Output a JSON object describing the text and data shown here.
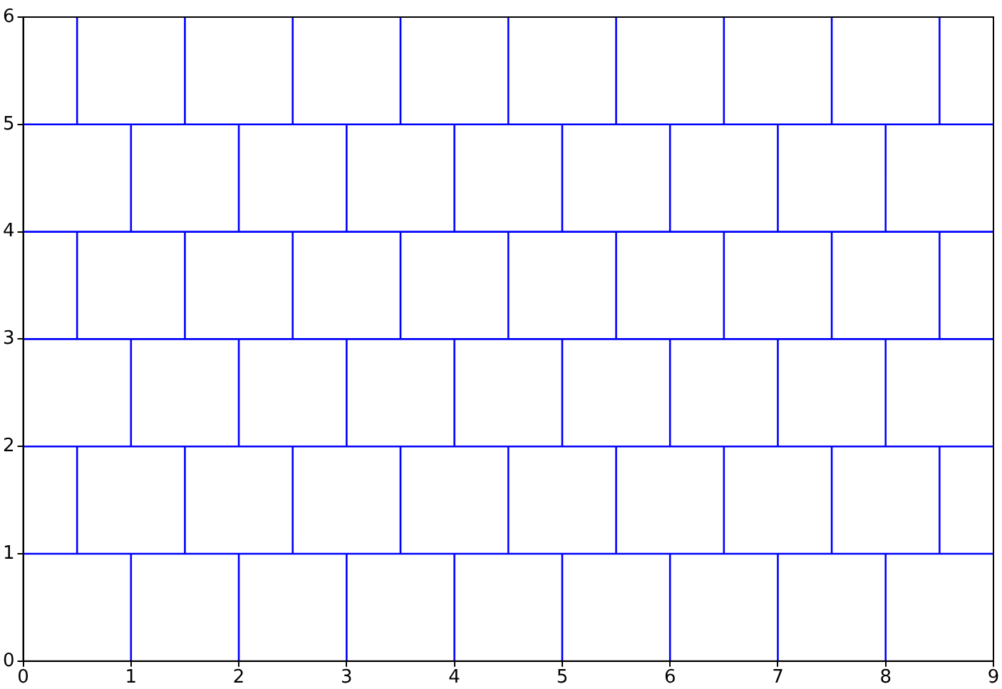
{
  "chart_data": {
    "type": "line",
    "xlim": [
      0,
      9
    ],
    "ylim": [
      0,
      6
    ],
    "xticks": [
      0,
      1,
      2,
      3,
      4,
      5,
      6,
      7,
      8,
      9
    ],
    "yticks": [
      0,
      1,
      2,
      3,
      4,
      5,
      6
    ],
    "legend": false,
    "marker": "none",
    "line_style": "solid",
    "ref_lines": [
      {
        "axis": "y",
        "value": 1,
        "color": "#0000ff"
      },
      {
        "axis": "y",
        "value": 2,
        "color": "#0000ff"
      },
      {
        "axis": "y",
        "value": 3,
        "color": "#0000ff"
      },
      {
        "axis": "y",
        "value": 4,
        "color": "#0000ff"
      },
      {
        "axis": "y",
        "value": 5,
        "color": "#0000ff"
      }
    ],
    "series": [
      {
        "color": "#0000ff",
        "x": [
          1,
          1
        ],
        "values": [
          0,
          1
        ]
      },
      {
        "color": "#0000ff",
        "x": [
          2,
          2
        ],
        "values": [
          0,
          1
        ]
      },
      {
        "color": "#0000ff",
        "x": [
          3,
          3
        ],
        "values": [
          0,
          1
        ]
      },
      {
        "color": "#0000ff",
        "x": [
          4,
          4
        ],
        "values": [
          0,
          1
        ]
      },
      {
        "color": "#0000ff",
        "x": [
          5,
          5
        ],
        "values": [
          0,
          1
        ]
      },
      {
        "color": "#0000ff",
        "x": [
          6,
          6
        ],
        "values": [
          0,
          1
        ]
      },
      {
        "color": "#0000ff",
        "x": [
          7,
          7
        ],
        "values": [
          0,
          1
        ]
      },
      {
        "color": "#0000ff",
        "x": [
          8,
          8
        ],
        "values": [
          0,
          1
        ]
      },
      {
        "color": "#0000ff",
        "x": [
          0.5,
          0.5
        ],
        "values": [
          1,
          2
        ]
      },
      {
        "color": "#0000ff",
        "x": [
          1.5,
          1.5
        ],
        "values": [
          1,
          2
        ]
      },
      {
        "color": "#0000ff",
        "x": [
          2.5,
          2.5
        ],
        "values": [
          1,
          2
        ]
      },
      {
        "color": "#0000ff",
        "x": [
          3.5,
          3.5
        ],
        "values": [
          1,
          2
        ]
      },
      {
        "color": "#0000ff",
        "x": [
          4.5,
          4.5
        ],
        "values": [
          1,
          2
        ]
      },
      {
        "color": "#0000ff",
        "x": [
          5.5,
          5.5
        ],
        "values": [
          1,
          2
        ]
      },
      {
        "color": "#0000ff",
        "x": [
          6.5,
          6.5
        ],
        "values": [
          1,
          2
        ]
      },
      {
        "color": "#0000ff",
        "x": [
          7.5,
          7.5
        ],
        "values": [
          1,
          2
        ]
      },
      {
        "color": "#0000ff",
        "x": [
          8.5,
          8.5
        ],
        "values": [
          1,
          2
        ]
      },
      {
        "color": "#0000ff",
        "x": [
          1,
          1
        ],
        "values": [
          2,
          3
        ]
      },
      {
        "color": "#0000ff",
        "x": [
          2,
          2
        ],
        "values": [
          2,
          3
        ]
      },
      {
        "color": "#0000ff",
        "x": [
          3,
          3
        ],
        "values": [
          2,
          3
        ]
      },
      {
        "color": "#0000ff",
        "x": [
          4,
          4
        ],
        "values": [
          2,
          3
        ]
      },
      {
        "color": "#0000ff",
        "x": [
          5,
          5
        ],
        "values": [
          2,
          3
        ]
      },
      {
        "color": "#0000ff",
        "x": [
          6,
          6
        ],
        "values": [
          2,
          3
        ]
      },
      {
        "color": "#0000ff",
        "x": [
          7,
          7
        ],
        "values": [
          2,
          3
        ]
      },
      {
        "color": "#0000ff",
        "x": [
          8,
          8
        ],
        "values": [
          2,
          3
        ]
      },
      {
        "color": "#0000ff",
        "x": [
          0.5,
          0.5
        ],
        "values": [
          3,
          4
        ]
      },
      {
        "color": "#0000ff",
        "x": [
          1.5,
          1.5
        ],
        "values": [
          3,
          4
        ]
      },
      {
        "color": "#0000ff",
        "x": [
          2.5,
          2.5
        ],
        "values": [
          3,
          4
        ]
      },
      {
        "color": "#0000ff",
        "x": [
          3.5,
          3.5
        ],
        "values": [
          3,
          4
        ]
      },
      {
        "color": "#0000ff",
        "x": [
          4.5,
          4.5
        ],
        "values": [
          3,
          4
        ]
      },
      {
        "color": "#0000ff",
        "x": [
          5.5,
          5.5
        ],
        "values": [
          3,
          4
        ]
      },
      {
        "color": "#0000ff",
        "x": [
          6.5,
          6.5
        ],
        "values": [
          3,
          4
        ]
      },
      {
        "color": "#0000ff",
        "x": [
          7.5,
          7.5
        ],
        "values": [
          3,
          4
        ]
      },
      {
        "color": "#0000ff",
        "x": [
          8.5,
          8.5
        ],
        "values": [
          3,
          4
        ]
      },
      {
        "color": "#0000ff",
        "x": [
          1,
          1
        ],
        "values": [
          4,
          5
        ]
      },
      {
        "color": "#0000ff",
        "x": [
          2,
          2
        ],
        "values": [
          4,
          5
        ]
      },
      {
        "color": "#0000ff",
        "x": [
          3,
          3
        ],
        "values": [
          4,
          5
        ]
      },
      {
        "color": "#0000ff",
        "x": [
          4,
          4
        ],
        "values": [
          4,
          5
        ]
      },
      {
        "color": "#0000ff",
        "x": [
          5,
          5
        ],
        "values": [
          4,
          5
        ]
      },
      {
        "color": "#0000ff",
        "x": [
          6,
          6
        ],
        "values": [
          4,
          5
        ]
      },
      {
        "color": "#0000ff",
        "x": [
          7,
          7
        ],
        "values": [
          4,
          5
        ]
      },
      {
        "color": "#0000ff",
        "x": [
          8,
          8
        ],
        "values": [
          4,
          5
        ]
      },
      {
        "color": "#0000ff",
        "x": [
          0.5,
          0.5
        ],
        "values": [
          5,
          6
        ]
      },
      {
        "color": "#0000ff",
        "x": [
          1.5,
          1.5
        ],
        "values": [
          5,
          6
        ]
      },
      {
        "color": "#0000ff",
        "x": [
          2.5,
          2.5
        ],
        "values": [
          5,
          6
        ]
      },
      {
        "color": "#0000ff",
        "x": [
          3.5,
          3.5
        ],
        "values": [
          5,
          6
        ]
      },
      {
        "color": "#0000ff",
        "x": [
          4.5,
          4.5
        ],
        "values": [
          5,
          6
        ]
      },
      {
        "color": "#0000ff",
        "x": [
          5.5,
          5.5
        ],
        "values": [
          5,
          6
        ]
      },
      {
        "color": "#0000ff",
        "x": [
          6.5,
          6.5
        ],
        "values": [
          5,
          6
        ]
      },
      {
        "color": "#0000ff",
        "x": [
          7.5,
          7.5
        ],
        "values": [
          5,
          6
        ]
      },
      {
        "color": "#0000ff",
        "x": [
          8.5,
          8.5
        ],
        "values": [
          5,
          6
        ]
      }
    ]
  }
}
